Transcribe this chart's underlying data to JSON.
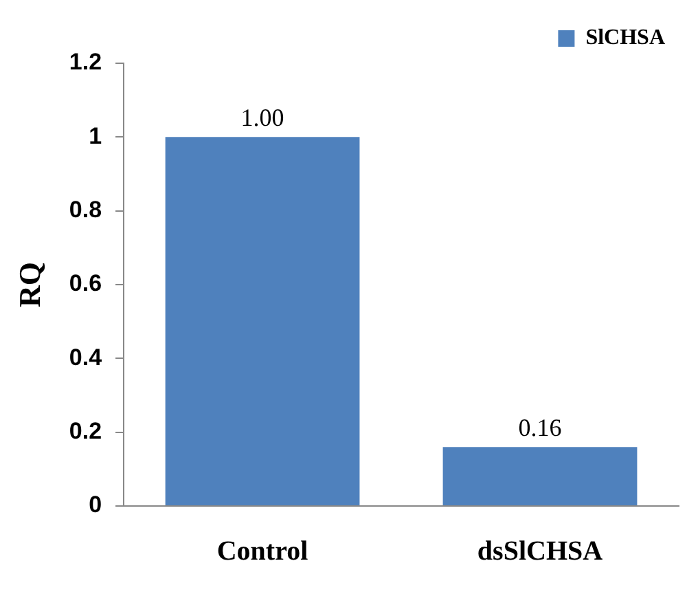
{
  "chart_data": {
    "type": "bar",
    "ylabel": "RQ",
    "categories": [
      "Control",
      "dsSlCHSA"
    ],
    "series": [
      {
        "name": "SlCHSA",
        "color": "#4f81bd",
        "values": [
          1.0,
          0.16
        ],
        "value_labels": [
          "1.00",
          "0.16"
        ]
      }
    ],
    "ylim": [
      0,
      1.2
    ],
    "yticks": [
      0,
      {
        "value": 0.2,
        "label": "0.2"
      },
      {
        "value": 0.4,
        "label": "0.4"
      },
      {
        "value": 0.6,
        "label": "0.6"
      },
      {
        "value": 0.8,
        "label": "0.8"
      },
      1,
      {
        "value": 1.2,
        "label": "1.2"
      }
    ],
    "grid": false,
    "legend": "top right"
  }
}
